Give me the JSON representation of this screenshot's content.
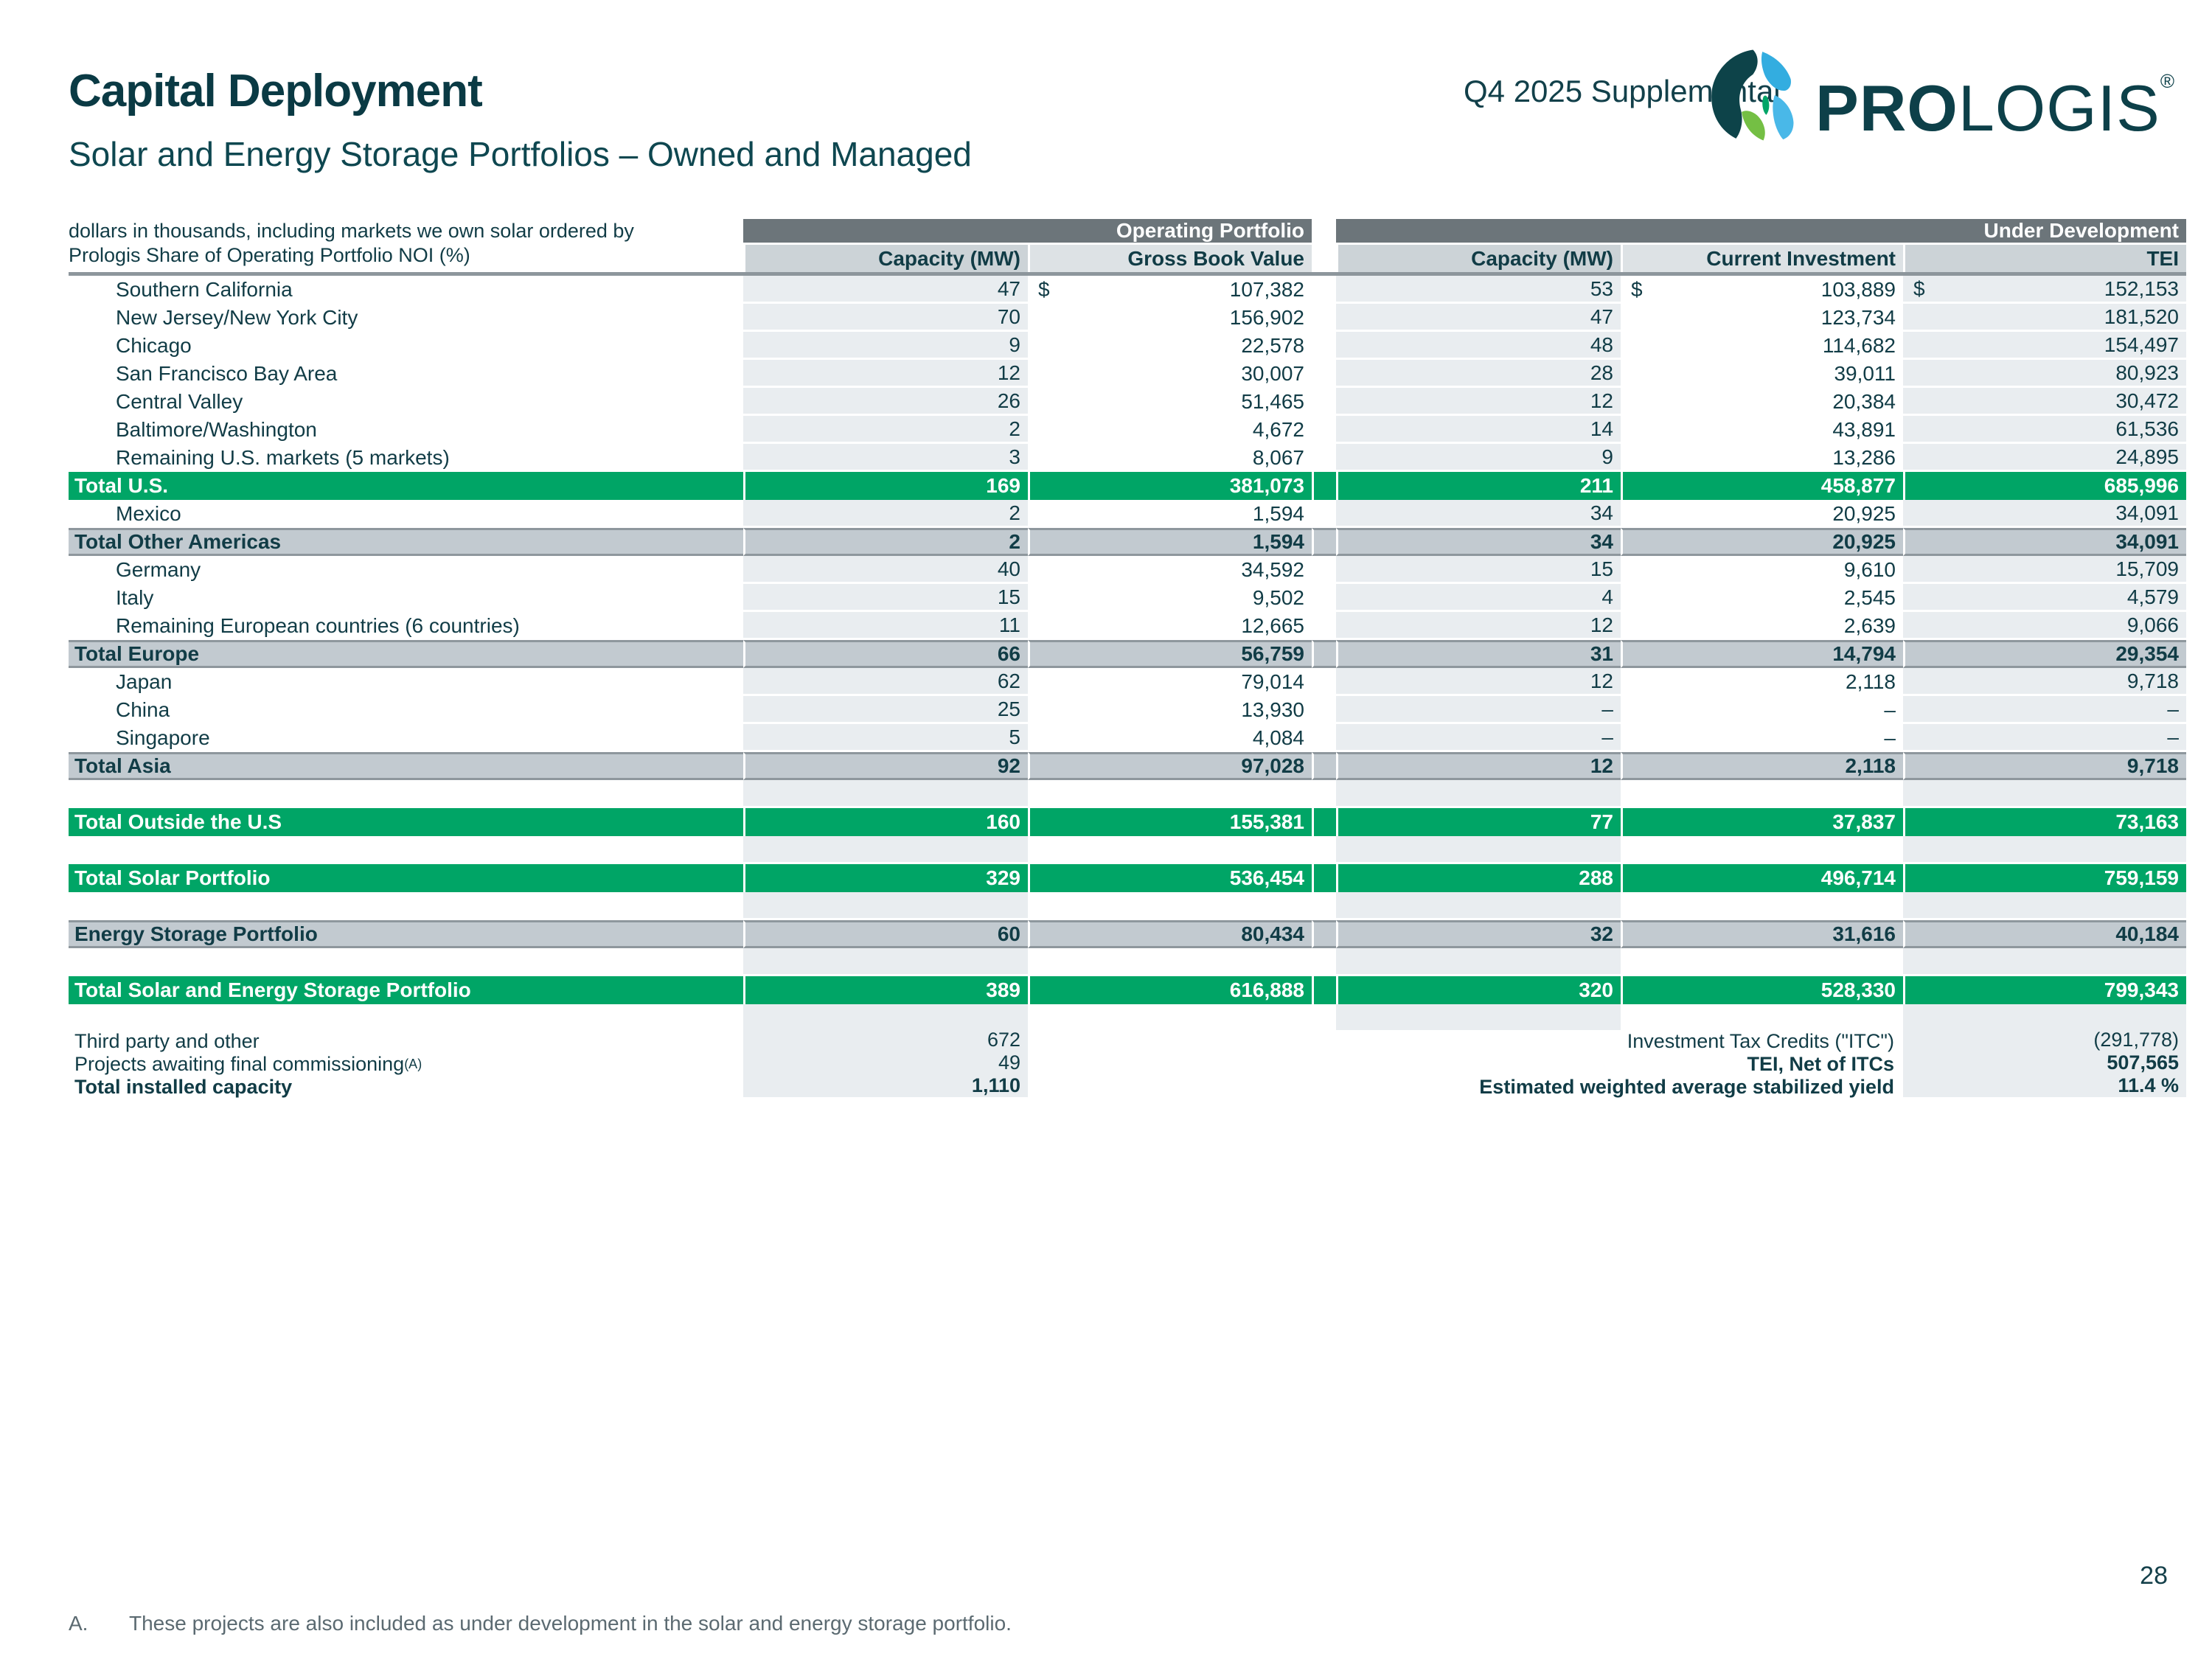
{
  "colors": {
    "brand_green": "#00a566",
    "dark_teal": "#113c46",
    "band_gray": "#c2cad0",
    "header_gray": "#6c757a",
    "shade": "#e9edf0"
  },
  "header": {
    "title": "Capital Deployment",
    "subtitle": "Solar and Energy Storage Portfolios – Owned and Managed",
    "supplemental": "Q4 2025 Supplemental"
  },
  "logo": {
    "wordmark_bold": "PRO",
    "wordmark_light": "LOGIS",
    "registered": "®"
  },
  "table": {
    "currency": "$",
    "note_line1": "dollars in thousands, including markets we own solar ordered by",
    "note_line2": "Prologis Share of Operating Portfolio NOI (%)",
    "group1": "Operating Portfolio",
    "group2": "Under Development",
    "col_op_capacity": "Capacity (MW)",
    "col_op_gbv": "Gross Book Value",
    "col_ud_capacity": "Capacity (MW)",
    "col_ud_investment": "Current Investment",
    "col_ud_tei": "TEI",
    "rows": [
      {
        "type": "data",
        "label": "Southern California",
        "dollar": true,
        "values": [
          "47",
          "107,382",
          "53",
          "103,889",
          "152,153"
        ]
      },
      {
        "type": "data",
        "label": "New Jersey/New York City",
        "values": [
          "70",
          "156,902",
          "47",
          "123,734",
          "181,520"
        ]
      },
      {
        "type": "data",
        "label": "Chicago",
        "values": [
          "9",
          "22,578",
          "48",
          "114,682",
          "154,497"
        ]
      },
      {
        "type": "data",
        "label": "San Francisco Bay Area",
        "values": [
          "12",
          "30,007",
          "28",
          "39,011",
          "80,923"
        ]
      },
      {
        "type": "data",
        "label": "Central Valley",
        "values": [
          "26",
          "51,465",
          "12",
          "20,384",
          "30,472"
        ]
      },
      {
        "type": "data",
        "label": "Baltimore/Washington",
        "values": [
          "2",
          "4,672",
          "14",
          "43,891",
          "61,536"
        ]
      },
      {
        "type": "data",
        "label": "Remaining U.S. markets (5 markets)",
        "values": [
          "3",
          "8,067",
          "9",
          "13,286",
          "24,895"
        ]
      },
      {
        "type": "green",
        "label": "Total U.S.",
        "values": [
          "169",
          "381,073",
          "211",
          "458,877",
          "685,996"
        ]
      },
      {
        "type": "data",
        "label": "Mexico",
        "values": [
          "2",
          "1,594",
          "34",
          "20,925",
          "34,091"
        ]
      },
      {
        "type": "gray",
        "label": "Total Other Americas",
        "values": [
          "2",
          "1,594",
          "34",
          "20,925",
          "34,091"
        ]
      },
      {
        "type": "data",
        "label": "Germany",
        "values": [
          "40",
          "34,592",
          "15",
          "9,610",
          "15,709"
        ]
      },
      {
        "type": "data",
        "label": "Italy",
        "values": [
          "15",
          "9,502",
          "4",
          "2,545",
          "4,579"
        ]
      },
      {
        "type": "data",
        "label": "Remaining European countries (6 countries)",
        "values": [
          "11",
          "12,665",
          "12",
          "2,639",
          "9,066"
        ]
      },
      {
        "type": "gray",
        "label": "Total Europe",
        "values": [
          "66",
          "56,759",
          "31",
          "14,794",
          "29,354"
        ]
      },
      {
        "type": "data",
        "label": "Japan",
        "values": [
          "62",
          "79,014",
          "12",
          "2,118",
          "9,718"
        ]
      },
      {
        "type": "data",
        "label": "China",
        "values": [
          "25",
          "13,930",
          "–",
          "–",
          "–"
        ]
      },
      {
        "type": "data",
        "label": "Singapore",
        "values": [
          "5",
          "4,084",
          "–",
          "–",
          "–"
        ]
      },
      {
        "type": "gray",
        "label": "Total Asia",
        "values": [
          "92",
          "97,028",
          "12",
          "2,118",
          "9,718"
        ]
      },
      {
        "type": "spacer"
      },
      {
        "type": "green",
        "label": "Total Outside the U.S",
        "values": [
          "160",
          "155,381",
          "77",
          "37,837",
          "73,163"
        ]
      },
      {
        "type": "spacer"
      },
      {
        "type": "green",
        "label": "Total Solar Portfolio",
        "values": [
          "329",
          "536,454",
          "288",
          "496,714",
          "759,159"
        ]
      },
      {
        "type": "spacer"
      },
      {
        "type": "gray",
        "label": "Energy Storage Portfolio",
        "values": [
          "60",
          "80,434",
          "32",
          "31,616",
          "40,184"
        ]
      },
      {
        "type": "spacer"
      },
      {
        "type": "green",
        "label": "Total Solar and Energy Storage Portfolio",
        "values": [
          "389",
          "616,888",
          "320",
          "528,330",
          "799,343"
        ]
      },
      {
        "type": "spacer"
      }
    ]
  },
  "footer": {
    "rows": [
      {
        "left_label": "Third party and other",
        "left_value": "672",
        "right_label": "Investment Tax Credits (\"ITC\")",
        "right_value": "(291,778)"
      },
      {
        "left_label": "Projects awaiting final commissioning",
        "left_sup": "(A)",
        "left_value": "49",
        "right_label": "TEI, Net of ITCs",
        "right_value": "507,565",
        "right_bold": true
      },
      {
        "left_label": "Total installed capacity",
        "left_value": "1,110",
        "left_bold": true,
        "right_label": "Estimated weighted average stabilized yield",
        "right_value": "11.4 %",
        "right_bold": true
      }
    ]
  },
  "footnote": {
    "marker": "A.",
    "text": "These projects are also included as under development in the solar and energy storage portfolio."
  },
  "page_number": "28"
}
